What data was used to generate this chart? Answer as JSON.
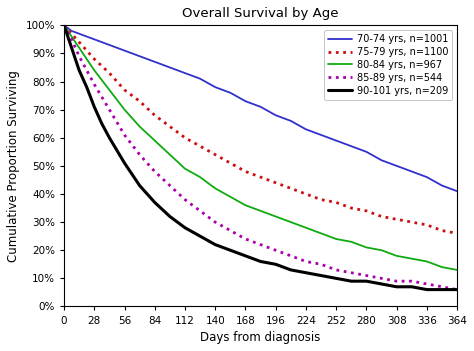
{
  "title": "Overall Survival by Age",
  "xlabel": "Days from diagnosis",
  "ylabel": "Cumulative Proportion Surviving",
  "xlim": [
    0,
    364
  ],
  "ylim": [
    0,
    1.0
  ],
  "xticks": [
    0,
    28,
    56,
    84,
    112,
    140,
    168,
    196,
    224,
    252,
    280,
    308,
    336,
    364
  ],
  "yticks": [
    0.0,
    0.1,
    0.2,
    0.3,
    0.4,
    0.5,
    0.6,
    0.7,
    0.8,
    0.9,
    1.0
  ],
  "series": [
    {
      "label": "70-74 yrs, n=1001",
      "color": "#3030cc",
      "linestyle": "solid",
      "linewidth": 1.3,
      "x": [
        0,
        7,
        14,
        21,
        28,
        42,
        56,
        70,
        84,
        98,
        112,
        126,
        140,
        154,
        168,
        182,
        196,
        210,
        224,
        238,
        252,
        266,
        280,
        294,
        308,
        322,
        336,
        350,
        364
      ],
      "y": [
        1.0,
        0.98,
        0.97,
        0.96,
        0.95,
        0.93,
        0.91,
        0.89,
        0.87,
        0.85,
        0.83,
        0.81,
        0.78,
        0.76,
        0.73,
        0.71,
        0.68,
        0.66,
        0.63,
        0.61,
        0.59,
        0.57,
        0.55,
        0.52,
        0.5,
        0.48,
        0.46,
        0.43,
        0.41
      ]
    },
    {
      "label": "75-79 yrs, n=1100",
      "color": "#cc1010",
      "linestyle": "dotted",
      "linewidth": 2.0,
      "x": [
        0,
        7,
        14,
        21,
        28,
        42,
        56,
        70,
        84,
        98,
        112,
        126,
        140,
        154,
        168,
        182,
        196,
        210,
        224,
        238,
        252,
        266,
        280,
        294,
        308,
        322,
        336,
        350,
        364
      ],
      "y": [
        1.0,
        0.97,
        0.94,
        0.91,
        0.88,
        0.83,
        0.77,
        0.73,
        0.68,
        0.64,
        0.6,
        0.57,
        0.54,
        0.51,
        0.48,
        0.46,
        0.44,
        0.42,
        0.4,
        0.38,
        0.37,
        0.35,
        0.34,
        0.32,
        0.31,
        0.3,
        0.29,
        0.27,
        0.26
      ]
    },
    {
      "label": "80-84 yrs, n=967",
      "color": "#10aa10",
      "linestyle": "solid",
      "linewidth": 1.3,
      "x": [
        0,
        7,
        14,
        21,
        28,
        42,
        56,
        70,
        84,
        98,
        112,
        126,
        140,
        154,
        168,
        182,
        196,
        210,
        224,
        238,
        252,
        266,
        280,
        294,
        308,
        322,
        336,
        350,
        364
      ],
      "y": [
        1.0,
        0.96,
        0.92,
        0.88,
        0.84,
        0.77,
        0.7,
        0.64,
        0.59,
        0.54,
        0.49,
        0.46,
        0.42,
        0.39,
        0.36,
        0.34,
        0.32,
        0.3,
        0.28,
        0.26,
        0.24,
        0.23,
        0.21,
        0.2,
        0.18,
        0.17,
        0.16,
        0.14,
        0.13
      ]
    },
    {
      "label": "85-89 yrs, n=544",
      "color": "#aa00aa",
      "linestyle": "dotted",
      "linewidth": 2.0,
      "x": [
        0,
        7,
        14,
        21,
        28,
        42,
        56,
        70,
        84,
        98,
        112,
        126,
        140,
        154,
        168,
        182,
        196,
        210,
        224,
        238,
        252,
        266,
        280,
        294,
        308,
        322,
        336,
        350,
        364
      ],
      "y": [
        1.0,
        0.95,
        0.89,
        0.84,
        0.79,
        0.7,
        0.61,
        0.54,
        0.48,
        0.43,
        0.38,
        0.34,
        0.3,
        0.27,
        0.24,
        0.22,
        0.2,
        0.18,
        0.16,
        0.15,
        0.13,
        0.12,
        0.11,
        0.1,
        0.09,
        0.09,
        0.08,
        0.07,
        0.06
      ]
    },
    {
      "label": "90-101 yrs, n=209",
      "color": "#000000",
      "linestyle": "solid",
      "linewidth": 2.2,
      "x": [
        0,
        7,
        14,
        21,
        28,
        35,
        42,
        56,
        70,
        84,
        98,
        112,
        126,
        140,
        154,
        168,
        182,
        196,
        210,
        224,
        238,
        252,
        266,
        280,
        294,
        308,
        322,
        336,
        350,
        364
      ],
      "y": [
        1.0,
        0.92,
        0.84,
        0.78,
        0.71,
        0.65,
        0.6,
        0.51,
        0.43,
        0.37,
        0.32,
        0.28,
        0.25,
        0.22,
        0.2,
        0.18,
        0.16,
        0.15,
        0.13,
        0.12,
        0.11,
        0.1,
        0.09,
        0.09,
        0.08,
        0.07,
        0.07,
        0.06,
        0.06,
        0.06
      ]
    }
  ],
  "legend_loc": "upper right",
  "background_color": "#ffffff",
  "fig_width": 4.74,
  "fig_height": 3.51,
  "dpi": 100
}
